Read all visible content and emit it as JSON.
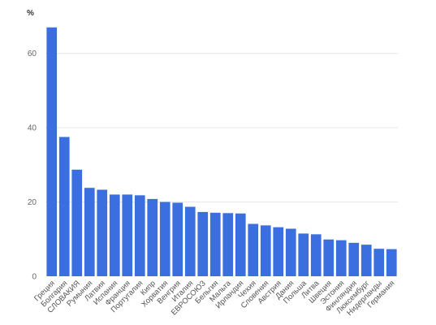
{
  "chart_data": {
    "type": "bar",
    "ylabel": "%",
    "ylim": [
      0,
      70
    ],
    "yticks": [
      0,
      20,
      40,
      60
    ],
    "grid": true,
    "colors": {
      "bar": "#3b6fe0",
      "grid": "#e6e6e6",
      "tick_text": "#666666"
    },
    "categories": [
      "Греция",
      "Болгария",
      "СЛОВАКИЯ",
      "Румыния",
      "Латвия",
      "Испания",
      "Франция",
      "Португалия",
      "Кипр",
      "Хорватия",
      "Венгрия",
      "Италия",
      "ЕВРОСОЮЗ",
      "Бельгия",
      "Мальта",
      "Ирландия",
      "Чехия",
      "Словения",
      "Австрия",
      "Дания",
      "Польша",
      "Литва",
      "Швеция",
      "Эстония",
      "Финляндия",
      "Люксембург",
      "Нидерланды",
      "Германия"
    ],
    "values": [
      67.0,
      37.5,
      28.7,
      23.8,
      23.3,
      22.0,
      22.0,
      21.8,
      20.8,
      20.0,
      19.8,
      18.7,
      17.3,
      17.1,
      17.0,
      16.9,
      14.1,
      13.7,
      13.2,
      12.8,
      11.5,
      11.3,
      9.9,
      9.7,
      9.0,
      8.5,
      7.4,
      7.3
    ]
  }
}
